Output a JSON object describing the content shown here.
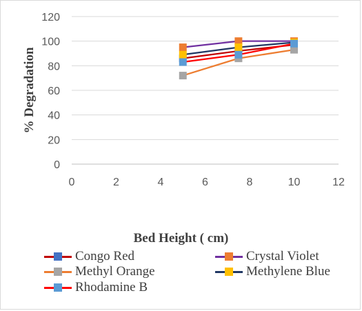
{
  "chart_data": {
    "type": "line",
    "title": "",
    "xlabel": "Bed Height ( cm)",
    "ylabel": "% Degradation",
    "xlim": [
      0,
      12
    ],
    "ylim": [
      0,
      120
    ],
    "xticks": [
      0,
      2,
      4,
      6,
      8,
      10,
      12
    ],
    "yticks": [
      0,
      20,
      40,
      60,
      80,
      100,
      120
    ],
    "grid": "horizontal",
    "legend_position": "bottom",
    "series": [
      {
        "name": "Congo Red",
        "x": [
          5,
          7.5,
          10
        ],
        "y": [
          86,
          92,
          97
        ],
        "line_color": "#c00000",
        "marker_color": "#4472c4"
      },
      {
        "name": "Crystal Violet",
        "x": [
          5,
          7.5,
          10
        ],
        "y": [
          95,
          100,
          100
        ],
        "line_color": "#7030a0",
        "marker_color": "#ed7d31"
      },
      {
        "name": "Methyl Orange",
        "x": [
          5,
          7.5,
          10
        ],
        "y": [
          72,
          86,
          93
        ],
        "line_color": "#ed7d31",
        "marker_color": "#a5a5a5"
      },
      {
        "name": "Methylene Blue",
        "x": [
          5,
          7.5,
          10
        ],
        "y": [
          89,
          95,
          99
        ],
        "line_color": "#203864",
        "marker_color": "#ffc000"
      },
      {
        "name": "Rhodamine B",
        "x": [
          5,
          7.5,
          10
        ],
        "y": [
          83,
          89,
          98
        ],
        "line_color": "#ff0000",
        "marker_color": "#5b9bd5"
      }
    ]
  }
}
